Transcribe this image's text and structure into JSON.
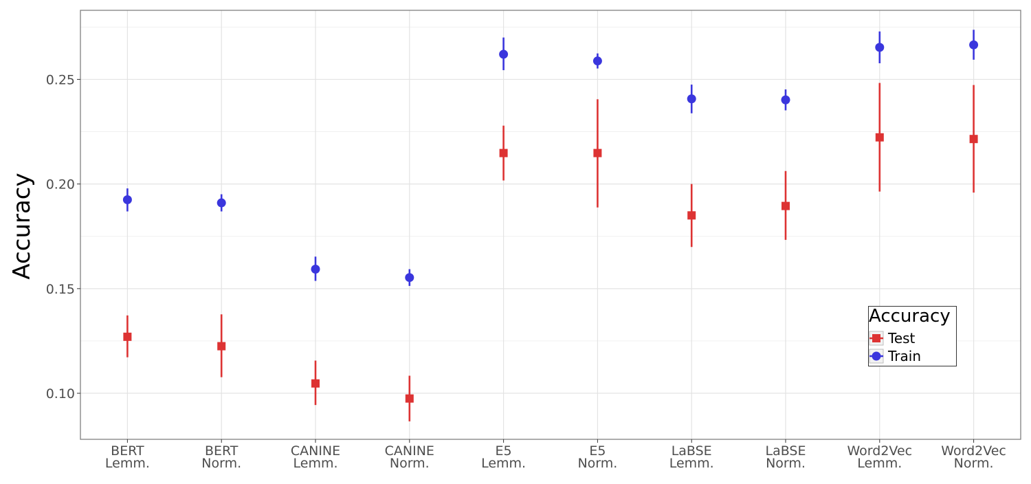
{
  "chart_data": {
    "type": "scatter",
    "title": "",
    "xlabel": "",
    "ylabel": "Accuracy",
    "categories": [
      [
        "BERT",
        "Lemm."
      ],
      [
        "BERT",
        "Norm."
      ],
      [
        "CANINE",
        "Lemm."
      ],
      [
        "CANINE",
        "Norm."
      ],
      [
        "E5",
        "Lemm."
      ],
      [
        "E5",
        "Norm."
      ],
      [
        "LaBSE",
        "Lemm."
      ],
      [
        "LaBSE",
        "Norm."
      ],
      [
        "Word2Vec",
        "Lemm."
      ],
      [
        "Word2Vec",
        "Norm."
      ]
    ],
    "ylim": [
      0.078,
      0.283
    ],
    "yticks": [
      0.1,
      0.15,
      0.2,
      0.25
    ],
    "ytick_labels": [
      "0.10",
      "0.15",
      "0.20",
      "0.25"
    ],
    "grid": true,
    "legend": {
      "title": "Accuracy",
      "placement": "bottom-right"
    },
    "series": [
      {
        "name": "Test",
        "color": "#dd3333",
        "marker": "square",
        "values": [
          0.127,
          0.1225,
          0.1047,
          0.0975,
          0.2148,
          0.2148,
          0.185,
          0.1895,
          0.2223,
          0.2215
        ],
        "lower": [
          0.1172,
          0.1077,
          0.0944,
          0.0866,
          0.2017,
          0.1888,
          0.1699,
          0.1733,
          0.1964,
          0.1959
        ],
        "upper": [
          0.1372,
          0.1377,
          0.1156,
          0.1084,
          0.2279,
          0.2405,
          0.2,
          0.2062,
          0.2483,
          0.2473
        ]
      },
      {
        "name": "Train",
        "color": "#3a36dd",
        "marker": "circle",
        "values": [
          0.1925,
          0.191,
          0.1593,
          0.1553,
          0.262,
          0.2588,
          0.2407,
          0.2402,
          0.2653,
          0.2665
        ],
        "lower": [
          0.1869,
          0.1869,
          0.1537,
          0.1513,
          0.2544,
          0.2552,
          0.2338,
          0.2352,
          0.2577,
          0.2594
        ],
        "upper": [
          0.1979,
          0.1951,
          0.1653,
          0.1593,
          0.27,
          0.2624,
          0.2475,
          0.2452,
          0.2729,
          0.2737
        ]
      }
    ]
  }
}
